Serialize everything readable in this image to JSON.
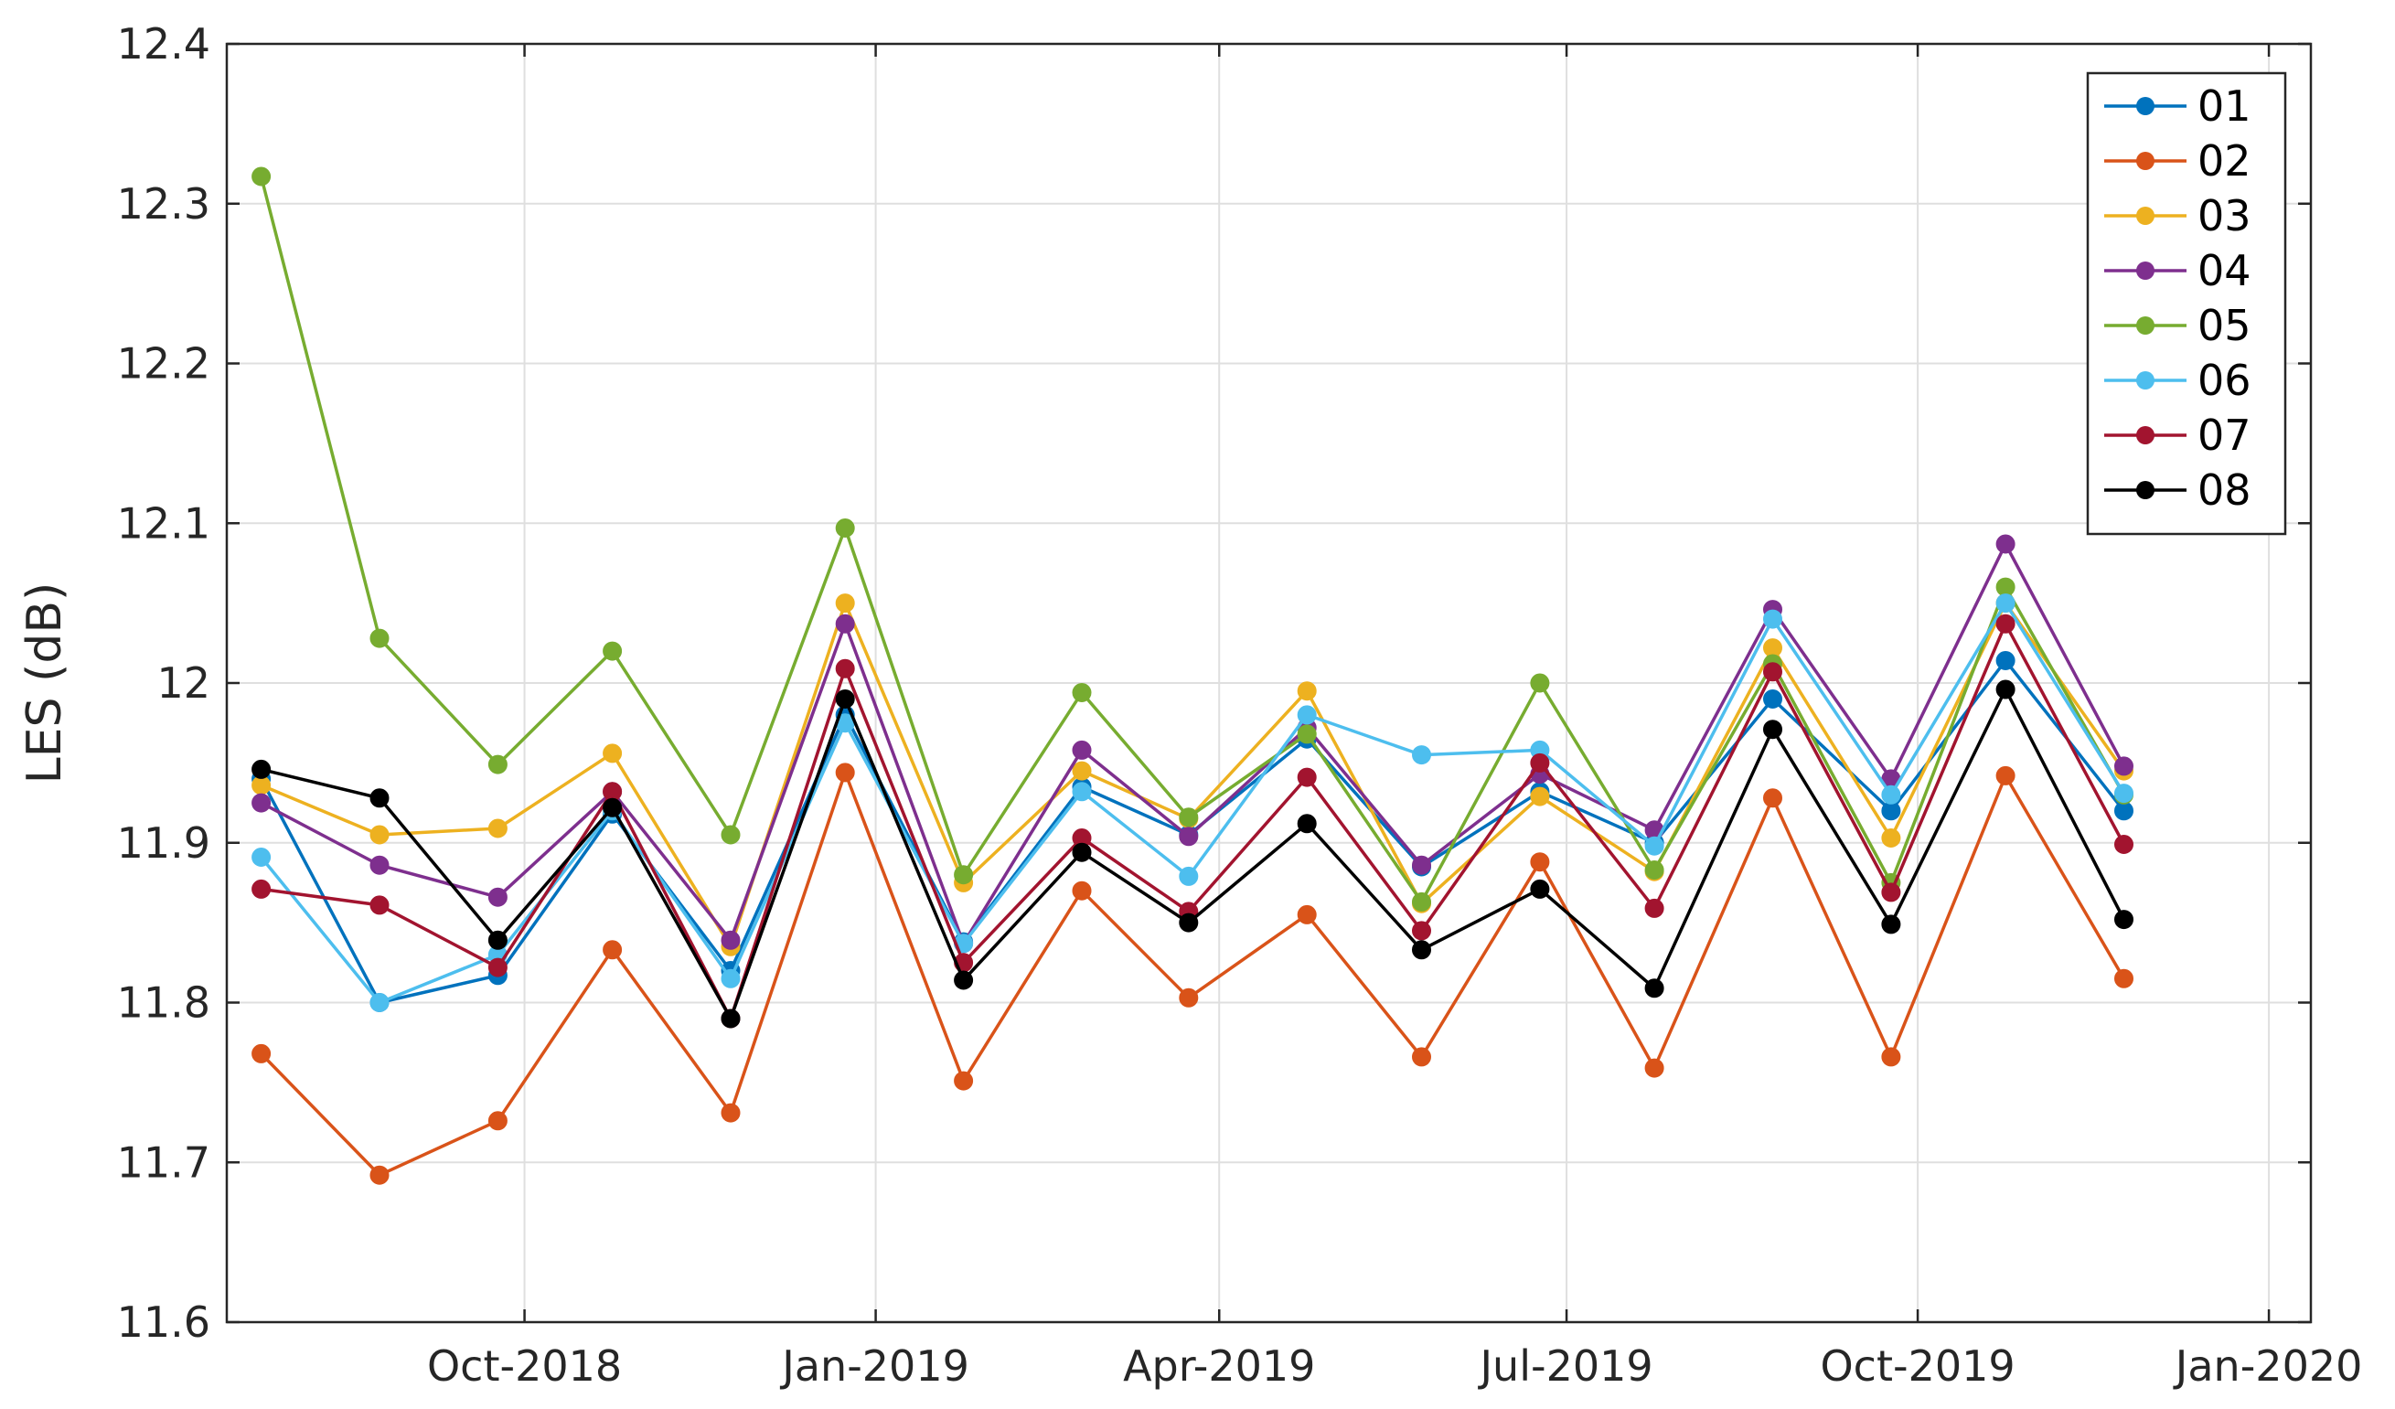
{
  "chart_data": {
    "type": "line",
    "title": "",
    "xlabel": "",
    "ylabel": "LES (dB)",
    "ylim": [
      11.6,
      12.4
    ],
    "yticks": [
      "11.6",
      "11.7",
      "11.8",
      "11.9",
      "12",
      "12.1",
      "12.2",
      "12.3",
      "12.4"
    ],
    "xlim": [
      "2018-07-15",
      "2020-01-12"
    ],
    "xticks": [
      {
        "date": "2018-10-01",
        "label": "Oct-2018"
      },
      {
        "date": "2019-01-01",
        "label": "Jan-2019"
      },
      {
        "date": "2019-04-01",
        "label": "Apr-2019"
      },
      {
        "date": "2019-07-01",
        "label": "Jul-2019"
      },
      {
        "date": "2019-10-01",
        "label": "Oct-2019"
      },
      {
        "date": "2020-01-01",
        "label": "Jan-2020"
      }
    ],
    "grid": true,
    "legend_position": "top-right",
    "x": [
      "2018-07-24",
      "2018-08-24",
      "2018-09-24",
      "2018-10-24",
      "2018-11-24",
      "2018-12-24",
      "2019-01-24",
      "2019-02-24",
      "2019-03-24",
      "2019-04-24",
      "2019-05-24",
      "2019-06-24",
      "2019-07-24",
      "2019-08-24",
      "2019-09-24",
      "2019-10-24",
      "2019-11-24"
    ],
    "series": [
      {
        "name": "01",
        "color": "#0072BD",
        "values": [
          11.94,
          11.8,
          11.817,
          11.918,
          11.82,
          11.98,
          11.838,
          11.935,
          11.905,
          11.965,
          11.885,
          11.932,
          11.9,
          11.99,
          11.92,
          12.014,
          11.92
        ]
      },
      {
        "name": "02",
        "color": "#D95319",
        "values": [
          11.768,
          11.692,
          11.726,
          11.833,
          11.731,
          11.944,
          11.751,
          11.87,
          11.803,
          11.855,
          11.766,
          11.888,
          11.759,
          11.928,
          11.766,
          11.942,
          11.815
        ]
      },
      {
        "name": "03",
        "color": "#EDB120",
        "values": [
          11.936,
          11.905,
          11.909,
          11.956,
          11.835,
          12.05,
          11.875,
          11.945,
          11.915,
          11.995,
          11.862,
          11.929,
          11.882,
          12.022,
          11.903,
          12.05,
          11.945
        ]
      },
      {
        "name": "04",
        "color": "#7E2F8E",
        "values": [
          11.925,
          11.886,
          11.866,
          11.932,
          11.839,
          12.037,
          11.837,
          11.958,
          11.904,
          11.972,
          11.886,
          11.943,
          11.908,
          12.046,
          11.94,
          12.087,
          11.948
        ]
      },
      {
        "name": "05",
        "color": "#77AC30",
        "values": [
          12.317,
          12.028,
          11.949,
          12.02,
          11.905,
          12.097,
          11.88,
          11.994,
          11.916,
          11.968,
          11.863,
          12.0,
          11.883,
          12.012,
          11.875,
          12.06,
          11.93
        ]
      },
      {
        "name": "06",
        "color": "#4DBEEE",
        "values": [
          11.891,
          11.8,
          11.83,
          11.92,
          11.815,
          11.975,
          11.837,
          11.932,
          11.879,
          11.98,
          11.955,
          11.958,
          11.898,
          12.04,
          11.93,
          12.05,
          11.931
        ]
      },
      {
        "name": "07",
        "color": "#A2142F",
        "values": [
          11.871,
          11.861,
          11.822,
          11.932,
          11.79,
          12.009,
          11.825,
          11.903,
          11.857,
          11.941,
          11.845,
          11.95,
          11.859,
          12.007,
          11.869,
          12.037,
          11.899
        ]
      },
      {
        "name": "08",
        "color": "#000000",
        "values": [
          11.946,
          11.928,
          11.839,
          11.922,
          11.79,
          11.99,
          11.814,
          11.894,
          11.85,
          11.912,
          11.833,
          11.871,
          11.809,
          11.971,
          11.849,
          11.996,
          11.852
        ]
      }
    ]
  }
}
